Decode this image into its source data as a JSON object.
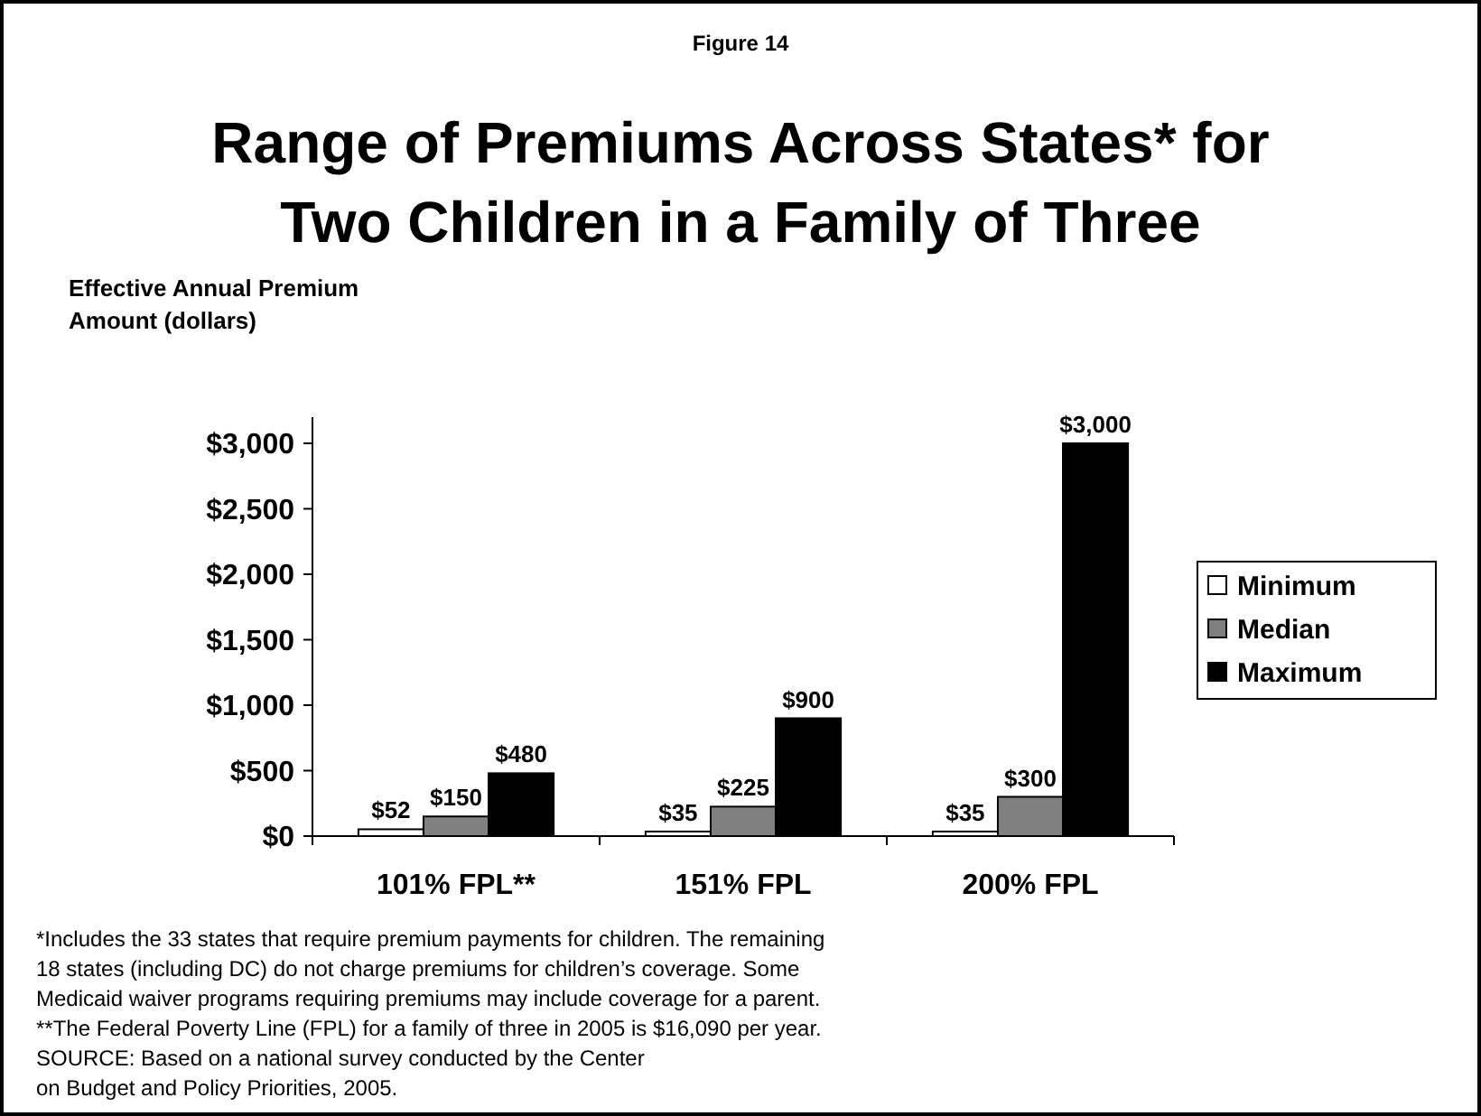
{
  "chart_data": {
    "type": "bar",
    "subtitle": "Figure 14",
    "title": "Range of Premiums Across States* for Two Children in a Family of Three",
    "ylabel": "Effective Annual Premium Amount (dollars)",
    "categories": [
      "101% FPL**",
      "151% FPL",
      "200% FPL"
    ],
    "series": [
      {
        "name": "Minimum",
        "color": "#ffffff",
        "values": [
          52,
          35,
          35
        ],
        "value_labels": [
          "$52",
          "$35",
          "$35"
        ]
      },
      {
        "name": "Median",
        "color": "#808080",
        "values": [
          150,
          225,
          300
        ],
        "value_labels": [
          "$150",
          "$225",
          "$300"
        ]
      },
      {
        "name": "Maximum",
        "color": "#000000",
        "values": [
          480,
          900,
          3000
        ],
        "value_labels": [
          "$480",
          "$900",
          "$3,000"
        ]
      }
    ],
    "ylim": [
      0,
      3200
    ],
    "yticks": [
      {
        "value": 0,
        "label": "$0"
      },
      {
        "value": 500,
        "label": "$500"
      },
      {
        "value": 1000,
        "label": "$1,000"
      },
      {
        "value": 1500,
        "label": "$1,500"
      },
      {
        "value": 2000,
        "label": "$2,000"
      },
      {
        "value": 2500,
        "label": "$2,500"
      },
      {
        "value": 3000,
        "label": "$3,000"
      }
    ],
    "grid": false,
    "legend": "right",
    "annotations": [
      "*Includes the 33 states that require premium payments for children. The remaining",
      "18 states (including DC) do not charge premiums for children’s coverage. Some",
      "Medicaid waiver programs requiring premiums may include coverage for a parent.",
      "**The Federal Poverty Line (FPL) for a family of three in 2005 is $16,090 per year.",
      "SOURCE:  Based on a national survey conducted by the Center",
      "on Budget and Policy Priorities, 2005."
    ]
  }
}
